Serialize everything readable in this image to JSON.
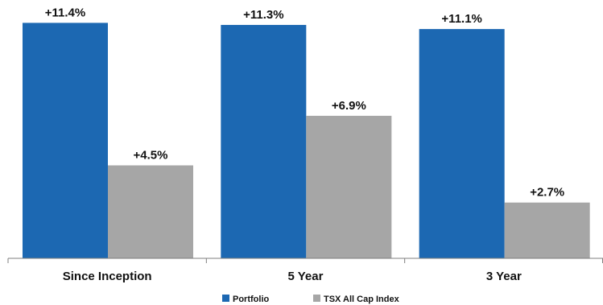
{
  "chart_data": {
    "type": "bar",
    "categories": [
      "Since Inception",
      "5 Year",
      "3 Year"
    ],
    "series": [
      {
        "name": "Portfolio",
        "values": [
          11.4,
          11.3,
          11.1
        ],
        "labels": [
          "+11.4%",
          "+11.3%",
          "+11.1%"
        ],
        "color": "#1c68b2"
      },
      {
        "name": "TSX All Cap Index",
        "values": [
          4.5,
          6.9,
          2.7
        ],
        "labels": [
          "+4.5%",
          "+6.9%",
          "+2.7%"
        ],
        "color": "#a6a6a6"
      }
    ],
    "ylim": [
      0,
      12
    ],
    "grid": false,
    "legend": "bottom-center"
  }
}
